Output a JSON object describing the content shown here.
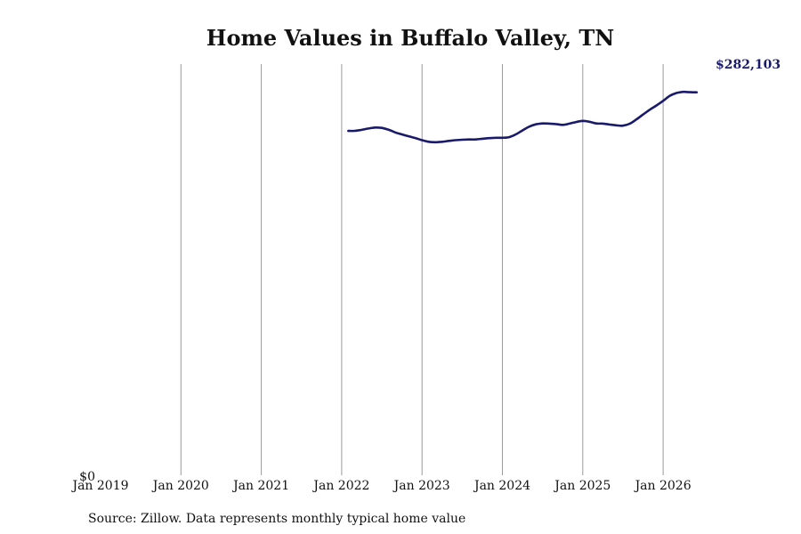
{
  "chart_data": {
    "type": "line",
    "title": "Home Values in Buffalo Valley, TN",
    "xlabel": "",
    "ylabel": "",
    "x_ticks": [
      "Jan 2019",
      "Jan 2020",
      "Jan 2021",
      "Jan 2022",
      "Jan 2023",
      "Jan 2024",
      "Jan 2025",
      "Jan 2026"
    ],
    "x_range": [
      "2019-01",
      "2026-07"
    ],
    "y_ticks": [
      "$0"
    ],
    "ylim": [
      0,
      282103
    ],
    "grid": "vertical",
    "legend": "none",
    "series": [
      {
        "color": "#1a1a6b",
        "points": [
          [
            "2022-02",
            238800
          ],
          [
            "2022-03",
            238900
          ],
          [
            "2022-04",
            239600
          ],
          [
            "2022-05",
            240500
          ],
          [
            "2022-06",
            241200
          ],
          [
            "2022-07",
            240900
          ],
          [
            "2022-08",
            239700
          ],
          [
            "2022-09",
            237800
          ],
          [
            "2022-10",
            236400
          ],
          [
            "2022-11",
            235100
          ],
          [
            "2022-12",
            233900
          ],
          [
            "2023-01",
            232400
          ],
          [
            "2023-02",
            231300
          ],
          [
            "2023-03",
            231000
          ],
          [
            "2023-04",
            231300
          ],
          [
            "2023-05",
            231900
          ],
          [
            "2023-06",
            232400
          ],
          [
            "2023-07",
            232700
          ],
          [
            "2023-08",
            232900
          ],
          [
            "2023-09",
            232900
          ],
          [
            "2023-10",
            233400
          ],
          [
            "2023-11",
            233800
          ],
          [
            "2023-12",
            234100
          ],
          [
            "2024-01",
            234100
          ],
          [
            "2024-02",
            234500
          ],
          [
            "2024-03",
            236400
          ],
          [
            "2024-04",
            239200
          ],
          [
            "2024-05",
            241800
          ],
          [
            "2024-06",
            243400
          ],
          [
            "2024-07",
            244000
          ],
          [
            "2024-08",
            243900
          ],
          [
            "2024-09",
            243600
          ],
          [
            "2024-10",
            243000
          ],
          [
            "2024-11",
            243900
          ],
          [
            "2024-12",
            245000
          ],
          [
            "2025-01",
            245800
          ],
          [
            "2025-02",
            245200
          ],
          [
            "2025-03",
            244000
          ],
          [
            "2025-04",
            243900
          ],
          [
            "2025-05",
            243300
          ],
          [
            "2025-06",
            242700
          ],
          [
            "2025-07",
            242500
          ],
          [
            "2025-08",
            243800
          ],
          [
            "2025-09",
            246800
          ],
          [
            "2025-10",
            250200
          ],
          [
            "2025-11",
            253500
          ],
          [
            "2025-12",
            256500
          ],
          [
            "2026-01",
            259700
          ],
          [
            "2026-02",
            263200
          ],
          [
            "2026-03",
            265100
          ],
          [
            "2026-04",
            265900
          ],
          [
            "2026-05",
            265700
          ],
          [
            "2026-06",
            265600
          ]
        ]
      }
    ],
    "end_label": "$282,103",
    "source": "Source: Zillow. Data represents monthly typical home value"
  }
}
